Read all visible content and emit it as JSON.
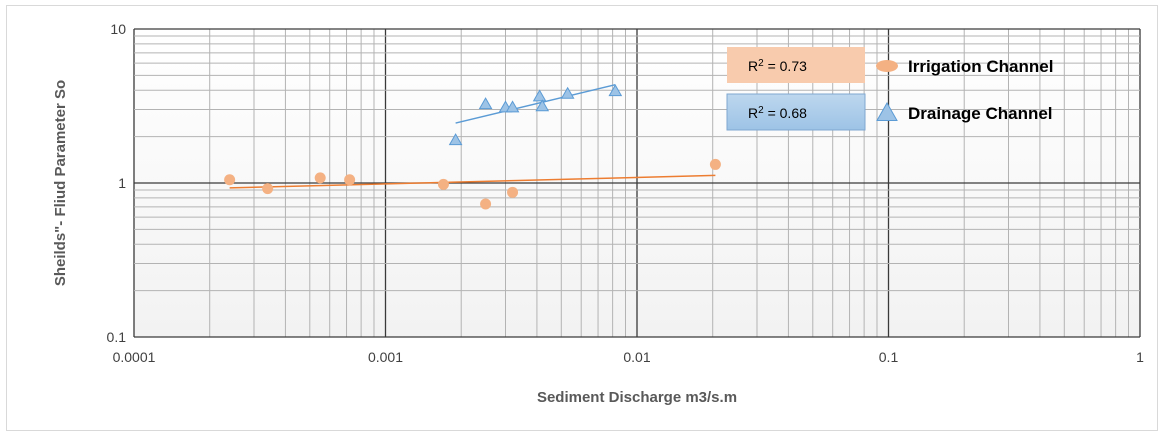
{
  "chart_data": {
    "type": "scatter",
    "xscale": "log",
    "yscale": "log",
    "xlim": [
      0.0001,
      1
    ],
    "ylim": [
      0.1,
      10
    ],
    "xlabel": "Sediment Discharge m3/s.m",
    "ylabel": "Sheilds\"- Fliud Parameter So",
    "x_ticks": [
      "0.0001",
      "0.001",
      "0.01",
      "0.1",
      "1"
    ],
    "y_ticks": [
      "0.1",
      "1",
      "10"
    ],
    "grid": true,
    "legend_position": "top-right",
    "series": [
      {
        "name": "Irrigation Channel",
        "marker": "circle",
        "color": "#f4b183",
        "trend_color": "#ed7d31",
        "r2_prefix": "R",
        "r2_value": " = 0.73",
        "r2_box_color": "#f8cbad",
        "points": [
          [
            0.00024,
            1.05
          ],
          [
            0.00034,
            0.92
          ],
          [
            0.00055,
            1.08
          ],
          [
            0.00072,
            1.05
          ],
          [
            0.0017,
            0.98
          ],
          [
            0.0025,
            0.73
          ],
          [
            0.0032,
            0.87
          ],
          [
            0.0205,
            1.32
          ]
        ],
        "trendline": [
          [
            0.00024,
            0.93
          ],
          [
            0.0205,
            1.12
          ]
        ]
      },
      {
        "name": "Drainage Channel",
        "marker": "triangle",
        "color": "#9dc3e6",
        "trend_color": "#5b9bd5",
        "r2_prefix": "R",
        "r2_value": " = 0.68",
        "r2_box_color": "#bdd7ee",
        "points": [
          [
            0.0019,
            1.9
          ],
          [
            0.0025,
            3.25
          ],
          [
            0.003,
            3.1
          ],
          [
            0.0032,
            3.1
          ],
          [
            0.0041,
            3.65
          ],
          [
            0.0042,
            3.15
          ],
          [
            0.0053,
            3.8
          ],
          [
            0.0082,
            3.95
          ]
        ],
        "trendline": [
          [
            0.0019,
            2.45
          ],
          [
            0.0082,
            4.35
          ]
        ]
      }
    ]
  }
}
